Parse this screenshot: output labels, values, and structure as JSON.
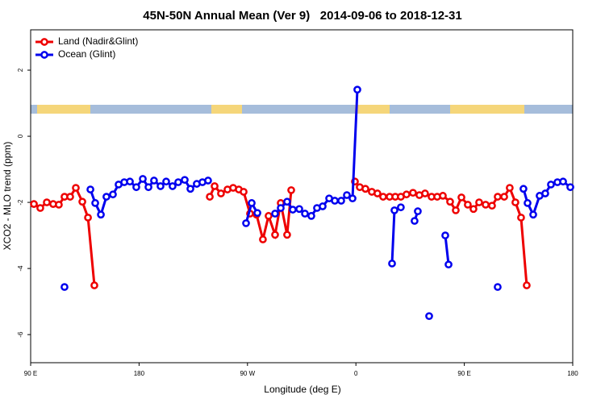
{
  "chart_data": {
    "type": "line",
    "title": "45N-50N Annual Mean (Ver 9)   2014-09-06 to 2018-12-31",
    "x_label": "Longitude (deg E)",
    "y_label": "XCO2 - MLO trend (ppm)",
    "xlim": [
      90,
      540
    ],
    "ylim": [
      -6.85,
      3.22
    ],
    "xticks": [
      {
        "value": 90,
        "label": "90 E"
      },
      {
        "value": 180,
        "label": "180"
      },
      {
        "value": 270,
        "label": "90 W"
      },
      {
        "value": 360,
        "label": "0"
      },
      {
        "value": 450,
        "label": "90 E"
      },
      {
        "value": 540,
        "label": "180"
      }
    ],
    "yticks": [
      -6,
      -4,
      -2,
      0,
      2
    ],
    "legend": "top-left",
    "series": [
      {
        "name": "Land (Nadir&Glint)",
        "color": "#ee0000",
        "x": [
          92.7,
          98.0,
          103.4,
          108.7,
          113.4,
          118.1,
          122.8,
          127.5,
          132.9,
          137.6,
          142.9,
          null,
          238.7,
          242.7,
          248.0,
          253.4,
          258.1,
          262.8,
          266.8,
          272.1,
          277.5,
          282.8,
          287.5,
          292.9,
          297.6,
          302.9,
          306.3,
          null,
          359.2,
          363.2,
          367.9,
          373.2,
          377.9,
          382.6,
          388.0,
          392.7,
          397.3,
          402.0,
          407.4,
          412.7,
          417.4,
          422.8,
          427.5,
          432.2,
          438.2,
          442.9,
          447.6,
          452.9,
          457.6,
          462.3,
          467.7,
          473.0,
          477.7,
          483.1,
          487.7,
          492.4,
          497.1,
          501.8
        ],
        "values": [
          -2.05,
          -2.17,
          -2.0,
          -2.05,
          -2.07,
          -1.83,
          -1.83,
          -1.56,
          -1.98,
          -2.46,
          -4.51,
          null,
          -1.83,
          -1.51,
          -1.73,
          -1.61,
          -1.56,
          -1.61,
          -1.68,
          -2.34,
          -2.37,
          -3.12,
          -2.41,
          -2.98,
          -2.02,
          -2.98,
          -1.63,
          null,
          -1.37,
          -1.54,
          -1.59,
          -1.68,
          -1.73,
          -1.83,
          -1.83,
          -1.83,
          -1.83,
          -1.76,
          -1.71,
          -1.78,
          -1.73,
          -1.83,
          -1.83,
          -1.8,
          -1.98,
          -2.24,
          -1.85,
          -2.07,
          -2.2,
          -2.0,
          -2.07,
          -2.1,
          -1.83,
          -1.83,
          -1.56,
          -2.0,
          -2.46,
          -4.51
        ]
      },
      {
        "name": "Ocean (Glint)",
        "color": "#0000ee",
        "x": [
          118.1,
          null,
          139.6,
          143.6,
          148.3,
          152.9,
          158.3,
          163.0,
          167.7,
          172.4,
          177.7,
          183.1,
          187.8,
          192.4,
          197.8,
          202.5,
          207.8,
          212.5,
          217.9,
          222.6,
          227.9,
          232.6,
          237.3,
          null,
          268.8,
          273.5,
          278.2,
          null,
          292.9,
          297.6,
          302.9,
          307.6,
          313.0,
          317.7,
          323.0,
          327.7,
          332.4,
          337.8,
          342.5,
          347.8,
          352.5,
          357.2,
          361.2,
          null,
          390.0,
          392.0,
          397.3,
          null,
          408.7,
          411.4,
          null,
          420.8,
          null,
          434.2,
          436.9,
          null,
          477.7,
          null,
          499.1,
          502.5,
          507.2,
          512.5,
          517.2,
          521.9,
          527.3,
          532.0,
          538.0
        ],
        "values": [
          -4.56,
          null,
          -1.61,
          -2.02,
          -2.37,
          -1.83,
          -1.76,
          -1.46,
          -1.39,
          -1.37,
          -1.54,
          -1.29,
          -1.54,
          -1.34,
          -1.51,
          -1.37,
          -1.51,
          -1.39,
          -1.32,
          -1.59,
          -1.44,
          -1.39,
          -1.34,
          null,
          -2.63,
          -2.02,
          -2.32,
          null,
          -2.34,
          -2.17,
          -1.98,
          -2.22,
          -2.2,
          -2.34,
          -2.41,
          -2.17,
          -2.12,
          -1.88,
          -1.95,
          -1.95,
          -1.78,
          -1.88,
          1.41,
          null,
          -3.85,
          -2.24,
          -2.15,
          null,
          -2.56,
          -2.27,
          null,
          -5.44,
          null,
          -3.0,
          -3.88,
          null,
          -4.56,
          null,
          -1.59,
          -2.02,
          -2.37,
          -1.8,
          -1.73,
          -1.46,
          -1.39,
          -1.37,
          -1.54
        ]
      }
    ]
  }
}
